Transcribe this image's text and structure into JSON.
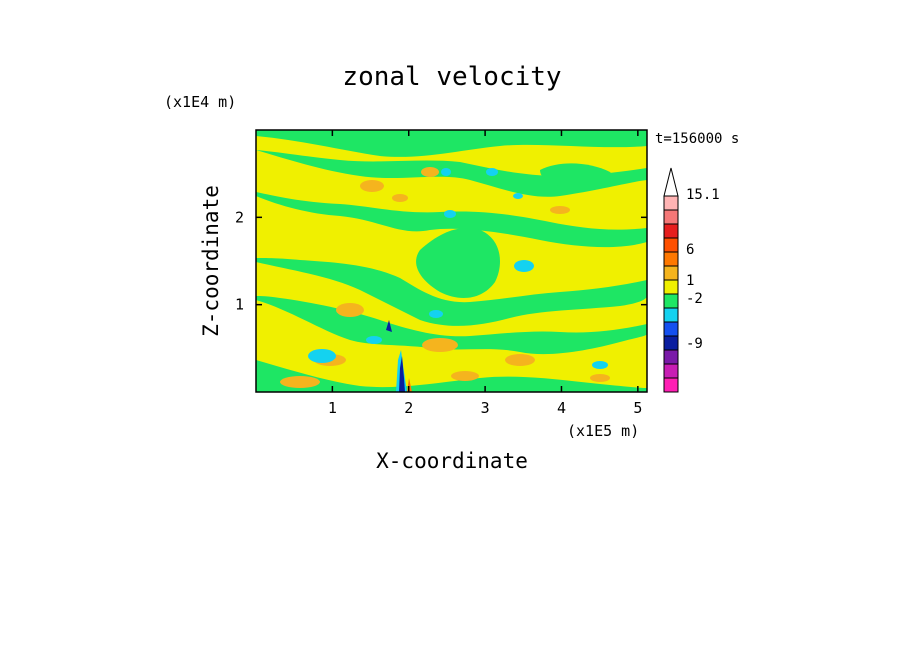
{
  "chart_data": {
    "type": "heatmap",
    "title": "zonal velocity",
    "xlabel": "X-coordinate",
    "ylabel": "Z-coordinate",
    "x_scale_label": "(x1E5 m)",
    "y_scale_label": "(x1E4 m)",
    "time_label": "t=156000 s",
    "xlim": [
      0,
      5.12
    ],
    "ylim": [
      0,
      3.0
    ],
    "x_ticks": [
      1,
      2,
      3,
      4,
      5
    ],
    "y_ticks": [
      1,
      2
    ],
    "colorbar": {
      "levels": [
        {
          "color": "#ff1fb4"
        },
        {
          "color": "#c81eb4"
        },
        {
          "color": "#7a1aa8"
        },
        {
          "color": "#0a1ea0"
        },
        {
          "color": "#1450f0"
        },
        {
          "color": "#14d2f0"
        },
        {
          "color": "#1ee664"
        },
        {
          "color": "#f0f000"
        },
        {
          "color": "#f5b41e"
        },
        {
          "color": "#ff7800"
        },
        {
          "color": "#ff5000"
        },
        {
          "color": "#e61e1e"
        },
        {
          "color": "#f57878"
        },
        {
          "color": "#ffb4b4"
        },
        {
          "color": "#ffffff"
        }
      ],
      "tick_labels": [
        {
          "value": "15.1"
        },
        {
          "value": "6"
        },
        {
          "value": "1"
        },
        {
          "value": "-2"
        },
        {
          "value": "-9"
        }
      ]
    },
    "field_colors": {
      "yellow": "#f0f000",
      "green": "#1ee664",
      "orange": "#f5b41e",
      "cyan": "#14d2f0",
      "blue": "#0a1ea0"
    }
  }
}
